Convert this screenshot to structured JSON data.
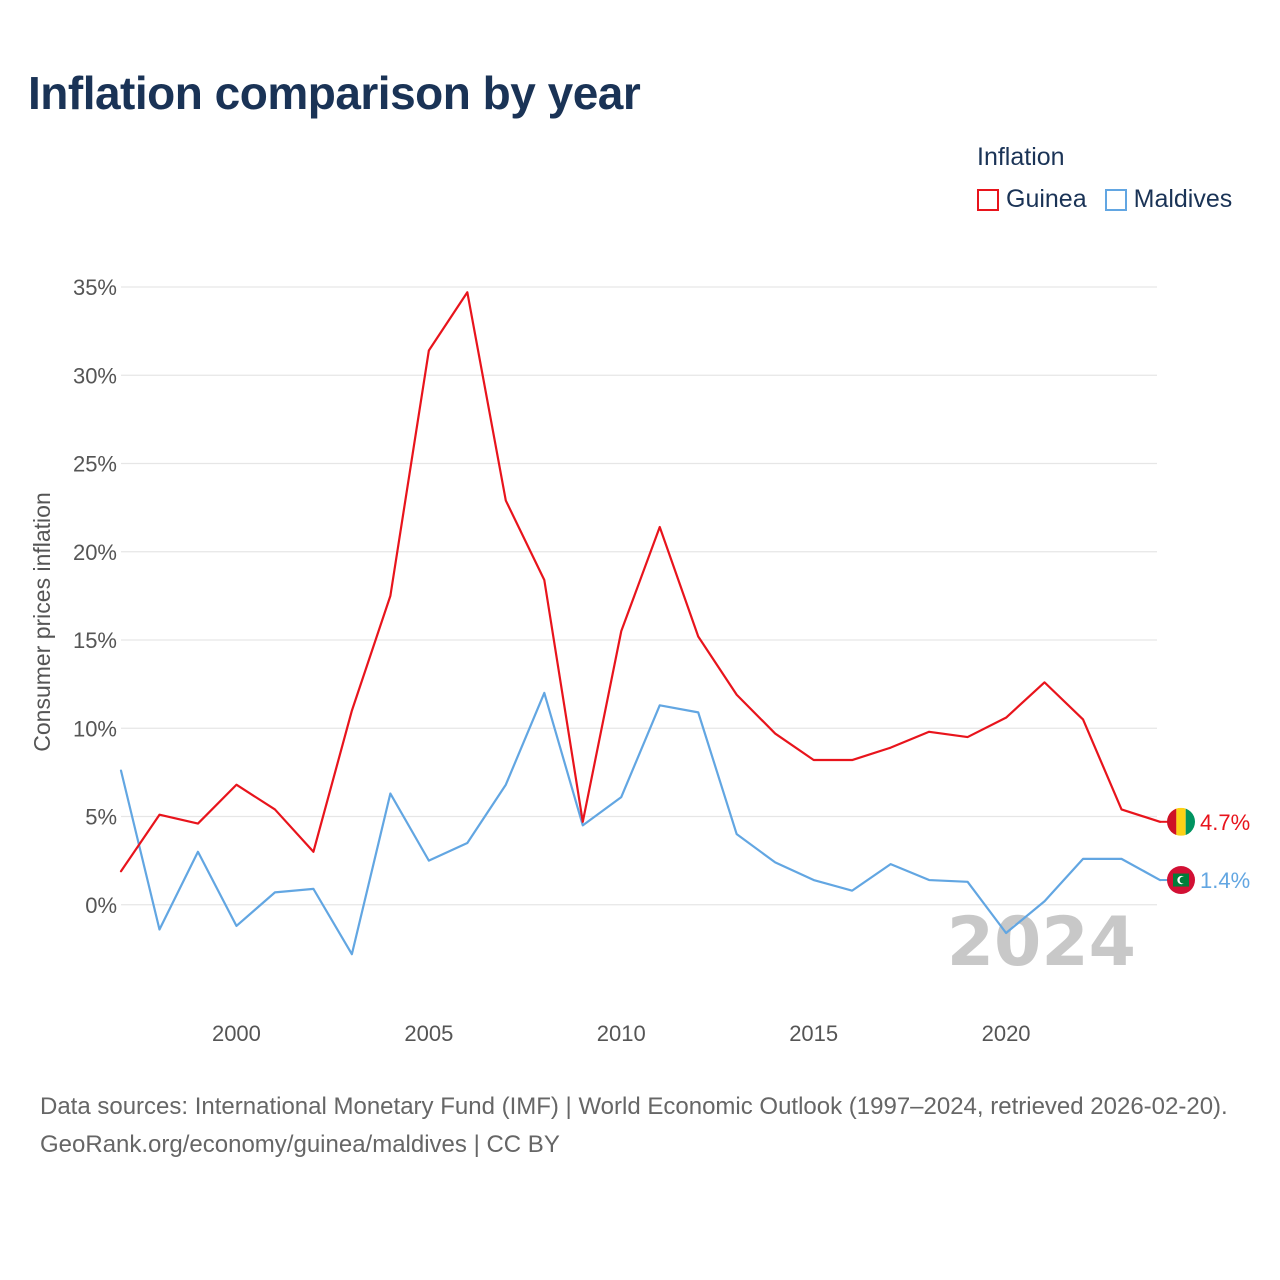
{
  "page": {
    "title": "Inflation comparison by year",
    "footer_sources": "Data sources: International Monetary Fund (IMF) | World Economic Outlook (1997–2024, retrieved 2026-02-20).",
    "footer_credit": "GeoRank.org/economy/guinea/maldives | CC BY"
  },
  "legend": {
    "title": "Inflation",
    "items": [
      {
        "label": "Guinea",
        "color": "#e8141c"
      },
      {
        "label": "Maldives",
        "color": "#62a6e2"
      }
    ]
  },
  "chart_data": {
    "type": "line",
    "title": "Inflation comparison by year",
    "xlabel": "",
    "ylabel": "Consumer prices inflation",
    "x": [
      1997,
      1998,
      1999,
      2000,
      2001,
      2002,
      2003,
      2004,
      2005,
      2006,
      2007,
      2008,
      2009,
      2010,
      2011,
      2012,
      2013,
      2014,
      2015,
      2016,
      2017,
      2018,
      2019,
      2020,
      2021,
      2022,
      2023,
      2024
    ],
    "xlim": [
      1997,
      2024
    ],
    "ylim": [
      -5,
      35
    ],
    "x_ticks": [
      2000,
      2005,
      2010,
      2015,
      2020
    ],
    "x_tick_labels": [
      "2000",
      "2005",
      "2010",
      "2015",
      "2020"
    ],
    "y_ticks": [
      0,
      5,
      10,
      15,
      20,
      25,
      30,
      35
    ],
    "y_tick_labels": [
      "0%",
      "5%",
      "10%",
      "15%",
      "20%",
      "25%",
      "30%",
      "35%"
    ],
    "grid": true,
    "legend_position": "top-right",
    "watermark_year": "2024",
    "series": [
      {
        "name": "Guinea",
        "color": "#e8141c",
        "end_label": "4.7%",
        "flag_icon": "guinea-flag-icon",
        "values": [
          1.9,
          5.1,
          4.6,
          6.8,
          5.4,
          3.0,
          11.0,
          17.5,
          31.4,
          34.7,
          22.9,
          18.4,
          4.7,
          15.5,
          21.4,
          15.2,
          11.9,
          9.7,
          8.2,
          8.2,
          8.9,
          9.8,
          9.5,
          10.6,
          12.6,
          10.5,
          5.4,
          4.7
        ]
      },
      {
        "name": "Maldives",
        "color": "#62a6e2",
        "end_label": "1.4%",
        "flag_icon": "maldives-flag-icon",
        "values": [
          7.6,
          -1.4,
          3.0,
          -1.2,
          0.7,
          0.9,
          -2.8,
          6.3,
          2.5,
          3.5,
          6.8,
          12.0,
          4.5,
          6.1,
          11.3,
          10.9,
          4.0,
          2.4,
          1.4,
          0.8,
          2.3,
          1.4,
          1.3,
          -1.6,
          0.2,
          2.6,
          2.6,
          1.4
        ]
      }
    ]
  }
}
